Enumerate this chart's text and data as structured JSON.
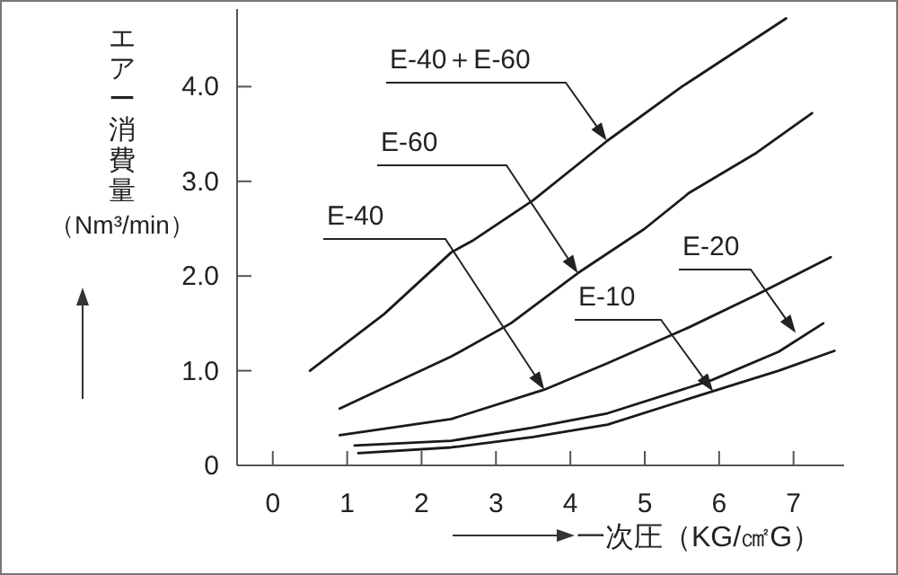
{
  "chart_data": {
    "type": "line",
    "xlabel": "一次圧（KG/㎠G）",
    "ylabel": "エアー消費量（Nm³/min）",
    "xlim": [
      -0.48,
      7.68
    ],
    "ylim": [
      0,
      4.82
    ],
    "xticks": [
      0,
      1,
      2,
      3,
      4,
      5,
      6,
      7
    ],
    "yticks": [
      0,
      {
        "value": 1,
        "label": "1.0"
      },
      {
        "value": 2,
        "label": "2.0"
      },
      {
        "value": 3,
        "label": "3.0"
      },
      {
        "value": 4,
        "label": "4.0"
      }
    ],
    "grid": false,
    "marker": "none",
    "line_style": "solid",
    "series": [
      {
        "color": "#1a1a1a",
        "x": [
          0.5,
          1.5,
          2.4,
          2.7,
          3.5,
          4.5,
          5.5,
          6.9
        ],
        "values": [
          1.0,
          1.6,
          2.25,
          2.38,
          2.8,
          3.43,
          4.0,
          4.72
        ]
      },
      {
        "color": "#1a1a1a",
        "x": [
          0.9,
          1.5,
          2.4,
          3.2,
          4.1,
          5.0,
          5.6,
          6.5,
          7.25
        ],
        "values": [
          0.6,
          0.82,
          1.15,
          1.5,
          2.03,
          2.5,
          2.88,
          3.3,
          3.72
        ]
      },
      {
        "color": "#1a1a1a",
        "x": [
          0.9,
          2.4,
          3.65,
          4.5,
          5.6,
          6.5,
          7.5
        ],
        "values": [
          0.32,
          0.49,
          0.8,
          1.08,
          1.46,
          1.8,
          2.2
        ]
      },
      {
        "color": "#1a1a1a",
        "x": [
          1.1,
          2.4,
          3.5,
          4.5,
          5.9,
          6.8,
          7.4
        ],
        "values": [
          0.21,
          0.26,
          0.4,
          0.55,
          0.9,
          1.2,
          1.5
        ]
      },
      {
        "color": "#1a1a1a",
        "x": [
          1.15,
          2.4,
          3.5,
          4.5,
          5.9,
          6.8,
          7.55
        ],
        "values": [
          0.13,
          0.19,
          0.3,
          0.43,
          0.78,
          1.0,
          1.21
        ]
      }
    ],
    "annotations": [
      {
        "text": "E-40＋E-60",
        "x": 4.49,
        "y": 3.43
      },
      {
        "text": "E-60",
        "x": 4.1,
        "y": 2.03
      },
      {
        "text": "E-40",
        "x": 3.65,
        "y": 0.8
      },
      {
        "text": "E-20",
        "x": 7.03,
        "y": 1.4
      },
      {
        "text": "E-10",
        "x": 5.92,
        "y": 0.78
      }
    ]
  }
}
